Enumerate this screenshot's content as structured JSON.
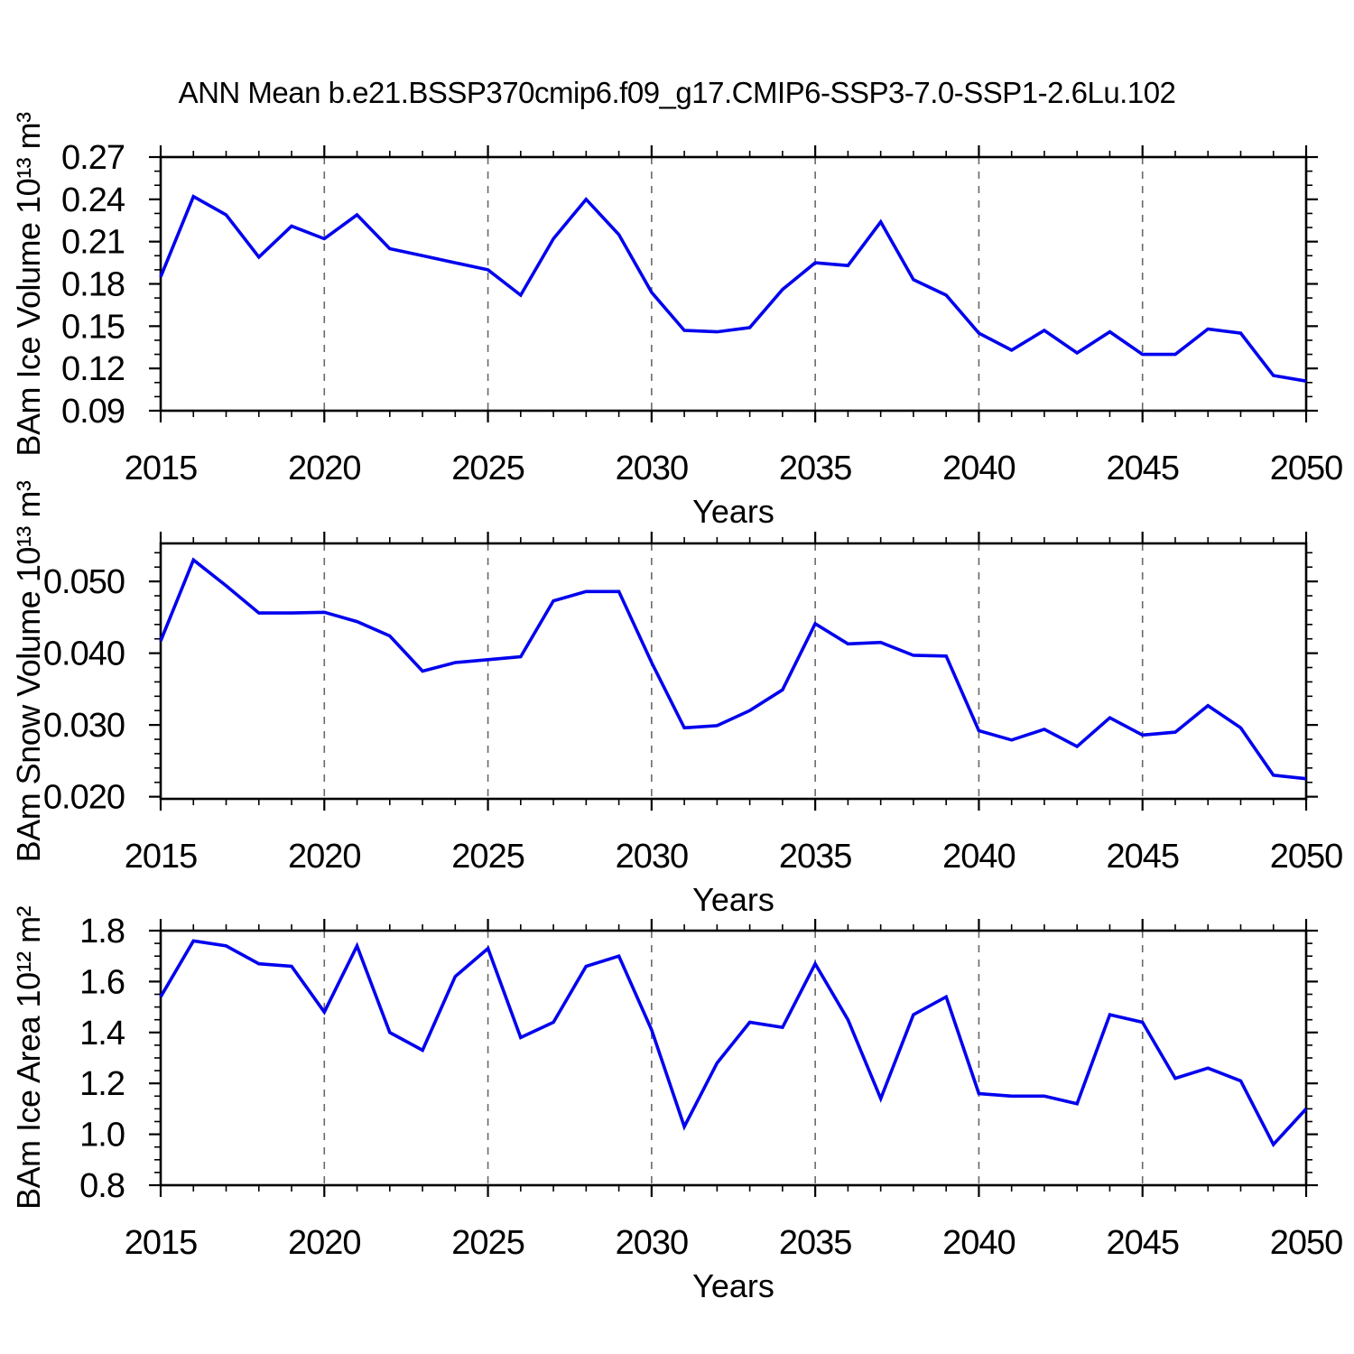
{
  "title": "ANN Mean b.e21.BSSP370cmip6.f09_g17.CMIP6-SSP3-7.0-SSP1-2.6Lu.102",
  "colors": {
    "line": "#0000ee",
    "grid": "#696969",
    "axis": "#000000",
    "text": "#000000",
    "background": "#ffffff"
  },
  "x_axis": {
    "label": "Years",
    "tick_labels": [
      "2015",
      "2020",
      "2025",
      "2030",
      "2035",
      "2040",
      "2045",
      "2050"
    ],
    "tick_values": [
      2015,
      2020,
      2025,
      2030,
      2035,
      2040,
      2045,
      2050
    ],
    "minor_step": 1,
    "range": [
      2015,
      2050
    ],
    "gridlines": [
      2020,
      2025,
      2030,
      2035,
      2040,
      2045
    ],
    "grid_style": "vertical-dashed"
  },
  "chart_data": [
    {
      "type": "line",
      "panel": "ice-volume",
      "ylabel": "BAm Ice Volume 10¹³ m³",
      "xlabel": "Years",
      "ylim": [
        0.09,
        0.27
      ],
      "ytick_labels": [
        "0.27",
        "0.24",
        "0.21",
        "0.18",
        "0.15",
        "0.12",
        "0.09"
      ],
      "ytick_values": [
        0.27,
        0.24,
        0.21,
        0.18,
        0.15,
        0.12,
        0.09
      ],
      "yminor_step": 0.01,
      "x": [
        2015,
        2016,
        2017,
        2018,
        2019,
        2020,
        2021,
        2022,
        2023,
        2024,
        2025,
        2026,
        2027,
        2028,
        2029,
        2030,
        2031,
        2032,
        2033,
        2034,
        2035,
        2036,
        2037,
        2038,
        2039,
        2040,
        2041,
        2042,
        2043,
        2044,
        2045,
        2046,
        2047,
        2048,
        2049,
        2050
      ],
      "values": [
        0.185,
        0.242,
        0.229,
        0.199,
        0.221,
        0.212,
        0.229,
        0.205,
        0.2,
        0.195,
        0.19,
        0.172,
        0.212,
        0.24,
        0.215,
        0.174,
        0.147,
        0.146,
        0.149,
        0.176,
        0.195,
        0.193,
        0.224,
        0.183,
        0.172,
        0.145,
        0.133,
        0.147,
        0.131,
        0.146,
        0.13,
        0.13,
        0.148,
        0.145,
        0.115,
        0.111
      ]
    },
    {
      "type": "line",
      "panel": "snow-volume",
      "ylabel": "BAm Snow Volume 10¹³ m³",
      "xlabel": "Years",
      "ylim": [
        0.0197,
        0.0553
      ],
      "ytick_labels": [
        "0.050",
        "0.040",
        "0.030",
        "0.020"
      ],
      "ytick_values": [
        0.05,
        0.04,
        0.03,
        0.02
      ],
      "yminor_step": 0.002,
      "x": [
        2015,
        2016,
        2017,
        2018,
        2019,
        2020,
        2021,
        2022,
        2023,
        2024,
        2025,
        2026,
        2027,
        2028,
        2029,
        2030,
        2031,
        2032,
        2033,
        2034,
        2035,
        2036,
        2037,
        2038,
        2039,
        2040,
        2041,
        2042,
        2043,
        2044,
        2045,
        2046,
        2047,
        2048,
        2049,
        2050
      ],
      "values": [
        0.0417,
        0.053,
        0.0494,
        0.0456,
        0.0456,
        0.0457,
        0.0444,
        0.0424,
        0.0375,
        0.0387,
        0.0391,
        0.0395,
        0.0473,
        0.0486,
        0.0486,
        0.0387,
        0.0296,
        0.0299,
        0.032,
        0.0349,
        0.0441,
        0.0413,
        0.0415,
        0.0397,
        0.0396,
        0.0292,
        0.0279,
        0.0294,
        0.027,
        0.031,
        0.0286,
        0.029,
        0.0327,
        0.0296,
        0.023,
        0.0225
      ]
    },
    {
      "type": "line",
      "panel": "ice-area",
      "ylabel": "BAm Ice Area 10¹² m²",
      "xlabel": "Years",
      "ylim": [
        0.8,
        1.8
      ],
      "ytick_labels": [
        "1.8",
        "1.6",
        "1.4",
        "1.2",
        "1.0",
        "0.8"
      ],
      "ytick_values": [
        1.8,
        1.6,
        1.4,
        1.2,
        1.0,
        0.8
      ],
      "yminor_step": 0.05,
      "x": [
        2015,
        2016,
        2017,
        2018,
        2019,
        2020,
        2021,
        2022,
        2023,
        2024,
        2025,
        2026,
        2027,
        2028,
        2029,
        2030,
        2031,
        2032,
        2033,
        2034,
        2035,
        2036,
        2037,
        2038,
        2039,
        2040,
        2041,
        2042,
        2043,
        2044,
        2045,
        2046,
        2047,
        2048,
        2049,
        2050
      ],
      "values": [
        1.54,
        1.76,
        1.74,
        1.67,
        1.66,
        1.48,
        1.74,
        1.4,
        1.33,
        1.62,
        1.73,
        1.38,
        1.44,
        1.66,
        1.7,
        1.41,
        1.03,
        1.28,
        1.44,
        1.42,
        1.67,
        1.45,
        1.14,
        1.47,
        1.54,
        1.16,
        1.15,
        1.15,
        1.12,
        1.47,
        1.44,
        1.22,
        1.26,
        1.21,
        0.96,
        1.1
      ]
    }
  ]
}
